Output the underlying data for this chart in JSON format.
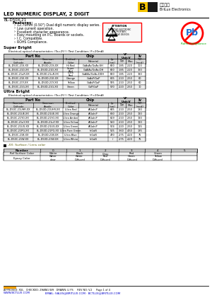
{
  "title": "LED NUMERIC DISPLAY, 2 DIGIT",
  "part_number": "BL-D50X-21",
  "company_cn": "百瑞光电",
  "company_en": "BriLux Electronics",
  "features": [
    "12.70mm (0.50\") Dual digit numeric display series.",
    "Low current operation.",
    "Excellent character appearance.",
    "Easy mounting on P.C. Boards or sockets.",
    "I.C. Compatible.",
    "ROHS Compliance."
  ],
  "super_bright_title": "Super Bright",
  "sb_condition": "Electrical-optical characteristics: (Ta=25°) (Test Condition: IF=20mA)",
  "sb_rows": [
    [
      "BL-D50C-21S-XX",
      "BL-D50D-21S-XX",
      "Hi Red",
      "GaAsAs/GaAs:SH",
      "660",
      "1.85",
      "2.20",
      "100"
    ],
    [
      "BL-D50C-21D-XX",
      "BL-D50D-21D-XX",
      "Super\nRed",
      "GaAlAs/GaAs:DH",
      "660",
      "1.85",
      "2.20",
      "160"
    ],
    [
      "BL-D50C-21uR-XX",
      "BL-D50D-21uR-XX",
      "Ultra\nRed",
      "GaAlAs/GaAs:DDH",
      "660",
      "1.85",
      "2.20",
      "190"
    ],
    [
      "BL-D50C-21E-XX",
      "BL-D50D-21E-XX",
      "Orange",
      "GaAsP/GaP",
      "635",
      "2.10",
      "2.50",
      "60"
    ],
    [
      "BL-D50C-21Y-XX",
      "BL-D50D-21Y-XX",
      "Yellow",
      "GaAsP/GaP",
      "585",
      "2.10",
      "2.50",
      "60"
    ],
    [
      "BL-D50C-21G-XX",
      "BL-D50D-21G-XX",
      "Green",
      "GaP/GaP",
      "570",
      "2.20",
      "2.50",
      "10"
    ]
  ],
  "ultra_bright_title": "Ultra Bright",
  "ub_condition": "Electrical-optical characteristics: (Ta=25°) (Test Condition: IF=20mA)",
  "ub_rows": [
    [
      "BL-D50C-21UHR-XX",
      "BL-D50D-21UHR-XX",
      "Ultra Red",
      "AlGaInP",
      "645",
      "2.10",
      "2.50",
      "180"
    ],
    [
      "BL-D50C-21UE-XX",
      "BL-D50D-21UE-XX",
      "Ultra Orange",
      "AlGaInP",
      "630",
      "2.10",
      "2.50",
      "120"
    ],
    [
      "BL-D50C-21YO-XX",
      "BL-D50D-21YO-XX",
      "Ultra Amber",
      "AlGaInP",
      "619",
      "2.10",
      "2.50",
      "120"
    ],
    [
      "BL-D50C-21uY-XX",
      "BL-D50D-21uY-XX",
      "Ultra Yellow",
      "AlGaInP",
      "590",
      "2.10",
      "2.50",
      "120"
    ],
    [
      "BL-D50C-21UG-XX",
      "BL-D50D-21UG-XX",
      "Ultra Green",
      "AlGaInP",
      "574",
      "2.20",
      "2.50",
      "115"
    ],
    [
      "BL-D50C-21PG-XX",
      "BL-D50D-21PG-XX",
      "Ultra Pure Green",
      "InGaN",
      "525",
      "3.60",
      "4.50",
      "185"
    ],
    [
      "BL-D50C-21B-XX",
      "BL-D50D-21B-XX",
      "Ultra Blue",
      "InGaN",
      "470",
      "2.75",
      "4.20",
      "75"
    ],
    [
      "BL-D50C-21W-XX",
      "BL-D50D-21W-XX",
      "Ultra White",
      "InGaN",
      "/",
      "2.75",
      "4.20",
      "75"
    ]
  ],
  "surface_note": "-XX: Surface / Lens color",
  "surface_headers": [
    "Number",
    "0",
    "1",
    "2",
    "3",
    "4",
    "5"
  ],
  "surface_row1_label": "Ref Surface Color",
  "surface_row1": [
    "White",
    "Black",
    "Gray",
    "Red",
    "Green",
    ""
  ],
  "surface_row2_label": "Epoxy Color",
  "surface_row2": [
    "Water\nclear",
    "White\nDiffused",
    "Red\nDiffused",
    "Green\nDiffused",
    "Yellow\nDiffused",
    ""
  ],
  "footer_line1": "APPROVED: XUL   CHECKED: ZHANG WH   DRAWN: LI FS     REV NO: V.2     Page 1 of 4",
  "footer_website": "WWW.BCTLUX.COM",
  "footer_email": "SALES@BRITLUX.COM · BCTLUX@BRITLUX.COM",
  "bg_color": "#ffffff"
}
